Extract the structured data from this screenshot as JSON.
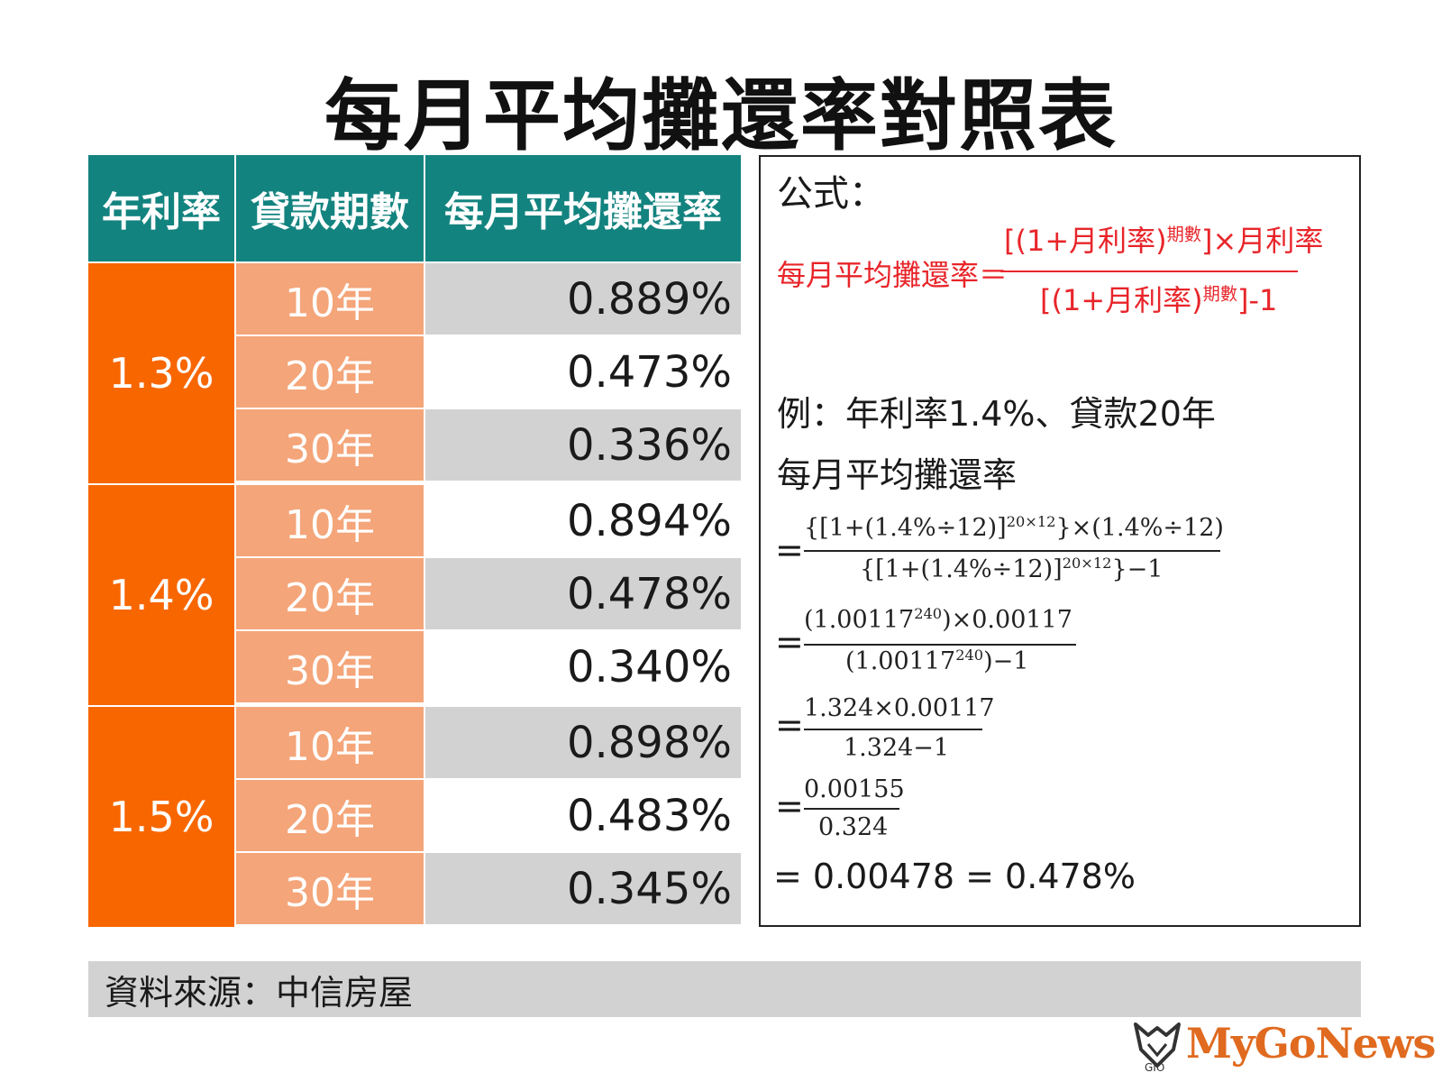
{
  "title": "每月平均攤還率對照表",
  "table": {
    "headers": [
      "年利率",
      "貸款期數",
      "每月平均攤還率"
    ],
    "groups": [
      {
        "rate": "1.3%",
        "rows": [
          {
            "term": "10年",
            "payment": "0.889%"
          },
          {
            "term": "20年",
            "payment": "0.473%"
          },
          {
            "term": "30年",
            "payment": "0.336%"
          }
        ]
      },
      {
        "rate": "1.4%",
        "rows": [
          {
            "term": "10年",
            "payment": "0.894%"
          },
          {
            "term": "20年",
            "payment": "0.478%"
          },
          {
            "term": "30年",
            "payment": "0.340%"
          }
        ]
      },
      {
        "rate": "1.5%",
        "rows": [
          {
            "term": "10年",
            "payment": "0.898%"
          },
          {
            "term": "20年",
            "payment": "0.483%"
          },
          {
            "term": "30年",
            "payment": "0.345%"
          }
        ]
      }
    ]
  },
  "formula": {
    "heading": "公式：",
    "lhs": "每月平均攤還率＝",
    "bracket_term": "(1+月利率)",
    "exponent": "期數",
    "times_rate": "×月利率",
    "minus_one": "-1",
    "example_line": "例：年利率1.4%、貸款20年",
    "example_subject": "每月平均攤還率",
    "steps": {
      "s1_num_a": "{[1+(1.4%÷12)]",
      "s1_num_exp": "20×12",
      "s1_num_b": "}×(1.4%÷12)",
      "s1_den_a": "{[1+(1.4%÷12)]",
      "s1_den_exp": "20×12",
      "s1_den_b": "}−1",
      "s2_num_a": "(1.00117",
      "s2_num_exp": "240",
      "s2_num_b": ")×0.00117",
      "s2_den_a": "(1.00117",
      "s2_den_exp": "240",
      "s2_den_b": ")−1",
      "s3_num": "1.324×0.00117",
      "s3_den": "1.324−1",
      "s4_num": "0.00155",
      "s4_den": "0.324",
      "final": "= 0.00478 = 0.478%"
    }
  },
  "source": "資料來源：中信房屋",
  "logo": {
    "text": "MyGoNews",
    "sub": "GIO"
  },
  "colors": {
    "header": "#13837f",
    "rate": "#f86600",
    "term": "#f4a579",
    "stripe": "#d2d2d2",
    "formula_red": "#e8252a",
    "logo": "#e06a1f"
  }
}
